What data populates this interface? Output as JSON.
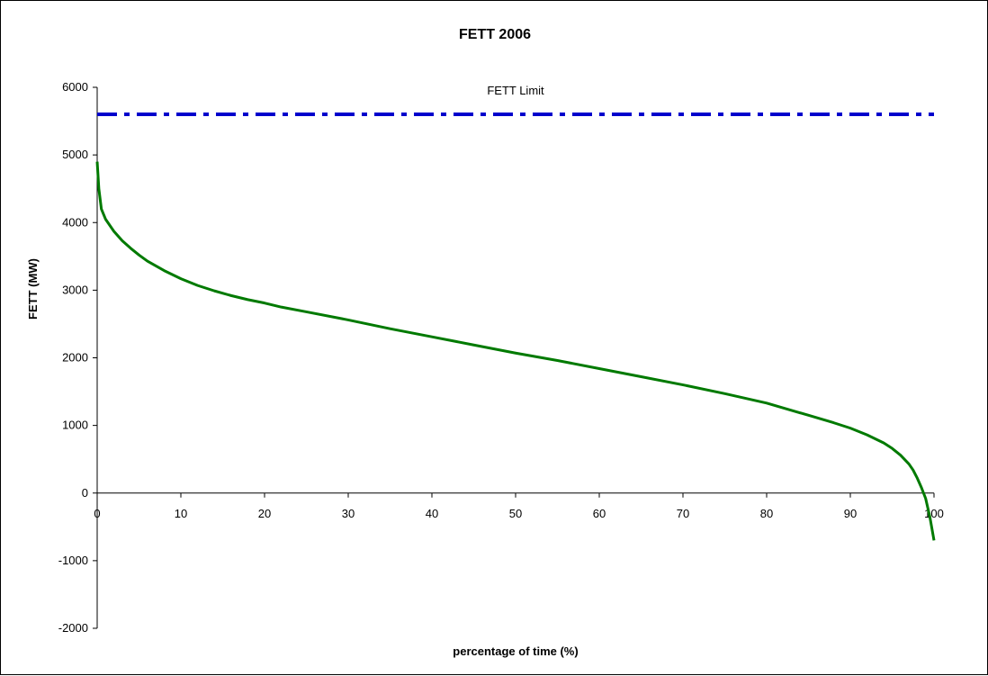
{
  "chart_data": {
    "type": "line",
    "title": "FETT 2006",
    "xlabel": "percentage of time (%)",
    "ylabel": "FETT (MW)",
    "xlim": [
      0,
      100
    ],
    "ylim": [
      -2000,
      6000
    ],
    "x_ticks": [
      0,
      10,
      20,
      30,
      40,
      50,
      60,
      70,
      80,
      90,
      100
    ],
    "y_ticks": [
      6000,
      5000,
      4000,
      3000,
      2000,
      1000,
      0,
      -1000,
      -2000
    ],
    "grid": false,
    "legend": "none",
    "annotations": [
      {
        "text": "FETT Limit",
        "attached_to": "FETT Limit line"
      }
    ],
    "series": [
      {
        "name": "FETT Limit",
        "style": "dash-dot",
        "color": "#0000cc",
        "x": [
          0,
          100
        ],
        "y": [
          5600,
          5600
        ]
      },
      {
        "style": "solid",
        "color": "#007a00",
        "x": [
          0,
          0.2,
          0.5,
          1,
          2,
          3,
          4,
          5,
          6,
          7,
          8,
          9,
          10,
          12,
          14,
          16,
          18,
          20,
          22,
          25,
          30,
          35,
          40,
          45,
          50,
          55,
          60,
          65,
          70,
          75,
          80,
          85,
          88,
          90,
          92,
          94,
          95,
          96,
          97,
          97.5,
          98,
          98.5,
          99,
          99.5,
          100
        ],
        "y": [
          4900,
          4500,
          4200,
          4050,
          3870,
          3730,
          3620,
          3520,
          3430,
          3360,
          3290,
          3230,
          3170,
          3070,
          2990,
          2920,
          2860,
          2810,
          2750,
          2680,
          2560,
          2430,
          2310,
          2190,
          2070,
          1960,
          1840,
          1720,
          1600,
          1470,
          1330,
          1150,
          1040,
          960,
          860,
          740,
          660,
          560,
          430,
          340,
          220,
          80,
          -80,
          -350,
          -700
        ]
      }
    ]
  }
}
